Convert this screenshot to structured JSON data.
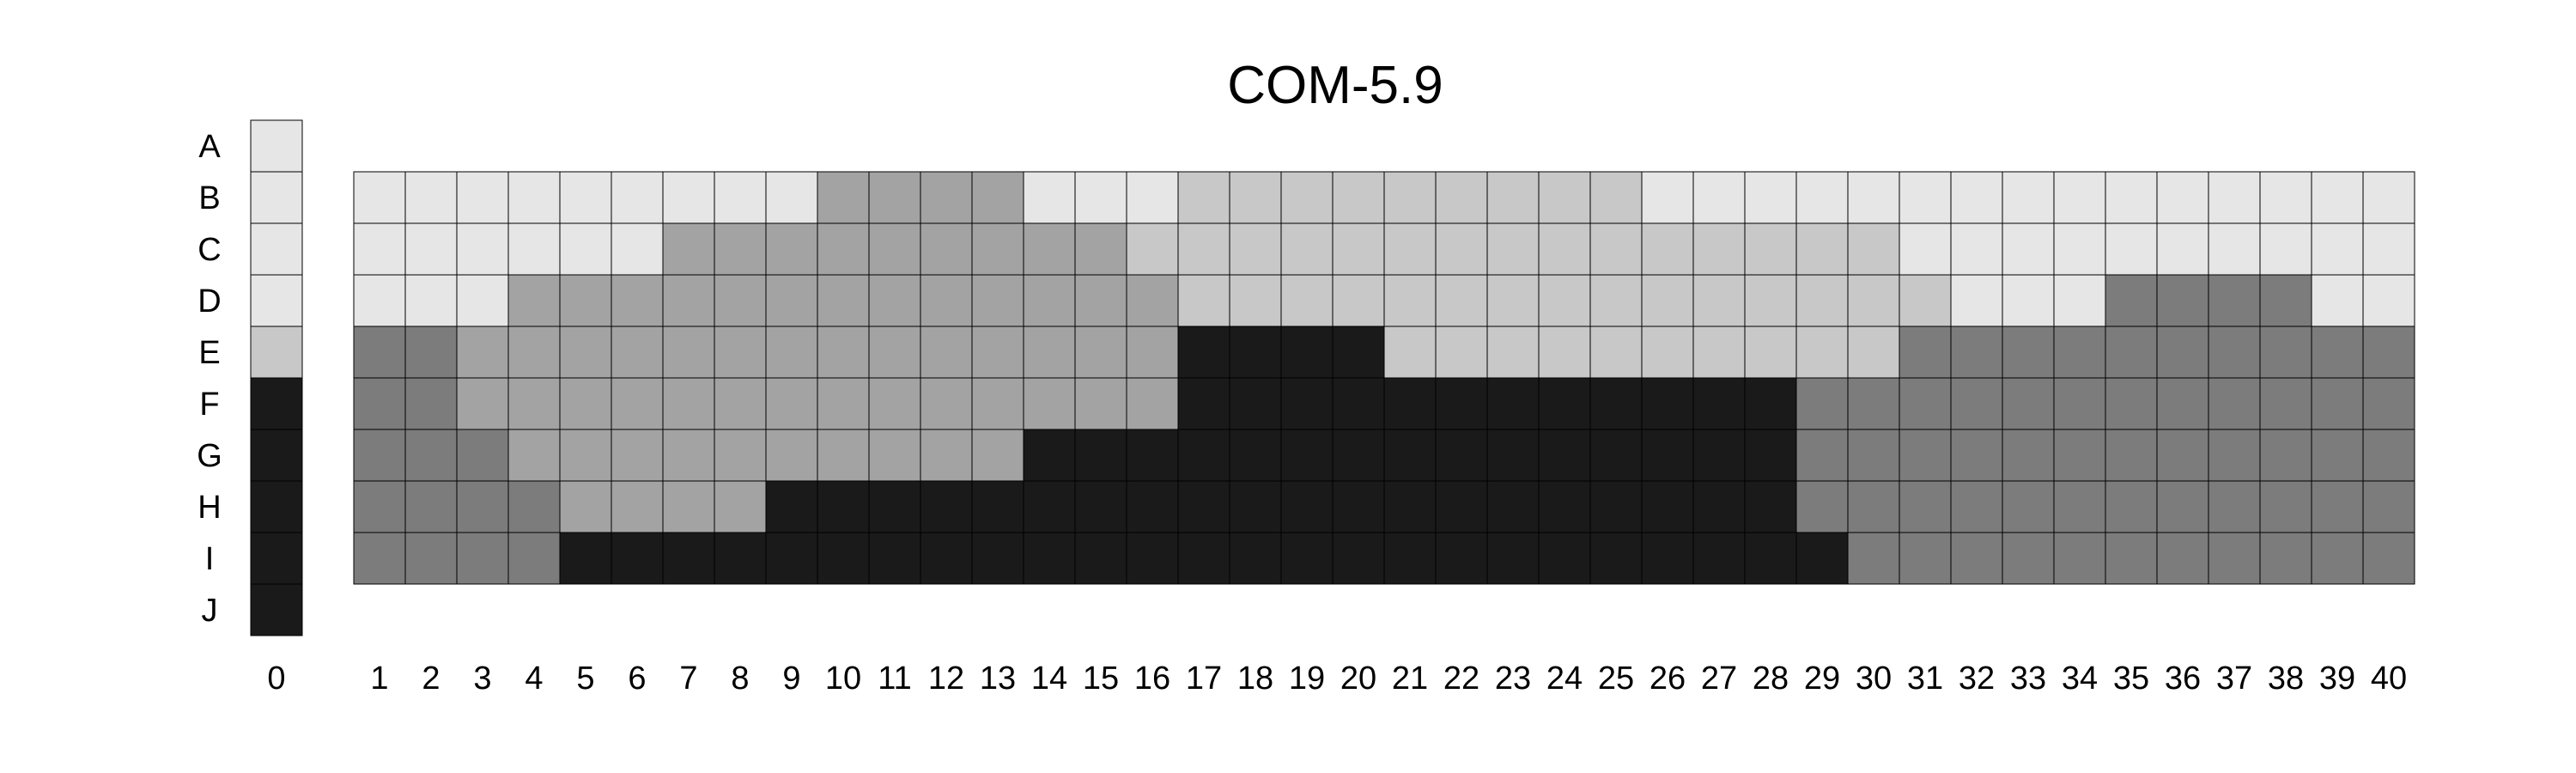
{
  "chart_data": {
    "type": "heatmap",
    "title": "COM-5.9",
    "xlabel": "",
    "ylabel": "",
    "row_labels": [
      "A",
      "B",
      "C",
      "D",
      "E",
      "F",
      "G",
      "H",
      "I",
      "J"
    ],
    "reference_column": {
      "label": "0",
      "levels": [
        1,
        1,
        1,
        1,
        2,
        5,
        5,
        5,
        5,
        5
      ]
    },
    "columns": [
      "1",
      "2",
      "3",
      "4",
      "5",
      "6",
      "7",
      "8",
      "9",
      "10",
      "11",
      "12",
      "13",
      "14",
      "15",
      "16",
      "17",
      "18",
      "19",
      "20",
      "21",
      "22",
      "23",
      "24",
      "25",
      "26",
      "27",
      "28",
      "29",
      "30",
      "31",
      "32",
      "33",
      "34",
      "35",
      "36",
      "37",
      "38",
      "39",
      "40"
    ],
    "grid_rows": [
      "B",
      "C",
      "D",
      "E",
      "F",
      "G",
      "H",
      "I"
    ],
    "grid_levels": [
      [
        1,
        1,
        1,
        1,
        1,
        1,
        1,
        1,
        1,
        3,
        3,
        3,
        3,
        1,
        1,
        1,
        2,
        2,
        2,
        2,
        2,
        2,
        2,
        2,
        2,
        1,
        1,
        1,
        1,
        1,
        1,
        1,
        1,
        1,
        1,
        1,
        1,
        1,
        1,
        1
      ],
      [
        1,
        1,
        1,
        1,
        1,
        1,
        3,
        3,
        3,
        3,
        3,
        3,
        3,
        3,
        3,
        2,
        2,
        2,
        2,
        2,
        2,
        2,
        2,
        2,
        2,
        2,
        2,
        2,
        2,
        2,
        1,
        1,
        1,
        1,
        1,
        1,
        1,
        1,
        1,
        1
      ],
      [
        1,
        1,
        1,
        3,
        3,
        3,
        3,
        3,
        3,
        3,
        3,
        3,
        3,
        3,
        3,
        3,
        2,
        2,
        2,
        2,
        2,
        2,
        2,
        2,
        2,
        2,
        2,
        2,
        2,
        2,
        2,
        1,
        1,
        1,
        4,
        4,
        4,
        4,
        1,
        1
      ],
      [
        4,
        4,
        3,
        3,
        3,
        3,
        3,
        3,
        3,
        3,
        3,
        3,
        3,
        3,
        3,
        3,
        5,
        5,
        5,
        5,
        2,
        2,
        2,
        2,
        2,
        2,
        2,
        2,
        2,
        2,
        4,
        4,
        4,
        4,
        4,
        4,
        4,
        4,
        4,
        4
      ],
      [
        4,
        4,
        3,
        3,
        3,
        3,
        3,
        3,
        3,
        3,
        3,
        3,
        3,
        3,
        3,
        3,
        5,
        5,
        5,
        5,
        5,
        5,
        5,
        5,
        5,
        5,
        5,
        5,
        4,
        4,
        4,
        4,
        4,
        4,
        4,
        4,
        4,
        4,
        4,
        4
      ],
      [
        4,
        4,
        4,
        3,
        3,
        3,
        3,
        3,
        3,
        3,
        3,
        3,
        3,
        5,
        5,
        5,
        5,
        5,
        5,
        5,
        5,
        5,
        5,
        5,
        5,
        5,
        5,
        5,
        4,
        4,
        4,
        4,
        4,
        4,
        4,
        4,
        4,
        4,
        4,
        4
      ],
      [
        4,
        4,
        4,
        4,
        3,
        3,
        3,
        3,
        5,
        5,
        5,
        5,
        5,
        5,
        5,
        5,
        5,
        5,
        5,
        5,
        5,
        5,
        5,
        5,
        5,
        5,
        5,
        5,
        4,
        4,
        4,
        4,
        4,
        4,
        4,
        4,
        4,
        4,
        4,
        4
      ],
      [
        4,
        4,
        4,
        4,
        5,
        5,
        5,
        5,
        5,
        5,
        5,
        5,
        5,
        5,
        5,
        5,
        5,
        5,
        5,
        5,
        5,
        5,
        5,
        5,
        5,
        5,
        5,
        5,
        5,
        4,
        4,
        4,
        4,
        4,
        4,
        4,
        4,
        4,
        4,
        4
      ]
    ],
    "level_colors": {
      "1": "#e6e6e6",
      "2": "#c8c8c8",
      "3": "#a3a3a3",
      "4": "#7c7c7c",
      "5": "#1a1a1a"
    },
    "grid": true,
    "legend": "none"
  }
}
